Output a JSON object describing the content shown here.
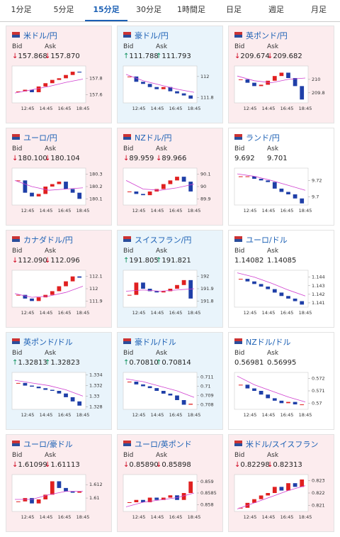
{
  "tabs": [
    "1分足",
    "5分足",
    "15分足",
    "30分足",
    "1時間足",
    "日足",
    "週足",
    "月足"
  ],
  "active_tab": 2,
  "bid_label": "Bid",
  "ask_label": "Ask",
  "cards": [
    {
      "title": "米ドル/円",
      "trend": "down",
      "bid": "↓157.868",
      "ask": "↓157.870",
      "chart": {
        "ylim": [
          157.5,
          157.95
        ],
        "yticks": [
          157.8,
          157.6
        ],
        "xlabels": [
          "12:45",
          "14:45",
          "16:45",
          "18:45"
        ],
        "closes": [
          157.64,
          157.66,
          157.63,
          157.7,
          157.74,
          157.78,
          157.8,
          157.84,
          157.88,
          157.87
        ],
        "ma": [
          157.62,
          157.66,
          157.7,
          157.75,
          157.79
        ]
      }
    },
    {
      "title": "豪ドル/円",
      "trend": "up",
      "bid": "↑111.788",
      "ask": "↑111.793",
      "chart": {
        "ylim": [
          111.75,
          112.1
        ],
        "yticks": [
          112,
          111.8
        ],
        "xlabels": [
          "12:45",
          "14:45",
          "16:45",
          "18:45"
        ],
        "closes": [
          112.0,
          111.95,
          111.93,
          111.9,
          111.88,
          111.9,
          111.86,
          111.84,
          111.82,
          111.79
        ],
        "ma": [
          112.02,
          111.96,
          111.92,
          111.88,
          111.85
        ]
      }
    },
    {
      "title": "英ポンド/円",
      "trend": "down",
      "bid": "↓209.674",
      "ask": "↓209.682",
      "chart": {
        "ylim": [
          209.65,
          210.2
        ],
        "yticks": [
          210,
          209.8
        ],
        "xlabels": [
          "12:45",
          "14:45",
          "16:45",
          "18:45"
        ],
        "closes": [
          210.0,
          209.95,
          209.9,
          209.92,
          209.98,
          210.05,
          210.1,
          210.02,
          209.9,
          209.7
        ],
        "ma": [
          210.05,
          209.98,
          209.95,
          210.0,
          210.02
        ]
      }
    },
    {
      "title": "ユーロ/円",
      "trend": "down",
      "bid": "↓180.100",
      "ask": "↓180.104",
      "chart": {
        "ylim": [
          180.05,
          180.35
        ],
        "yticks": [
          180.3,
          180.2,
          180.1
        ],
        "xlabels": [
          "12:45",
          "14:45",
          "16:45",
          "18:45"
        ],
        "closes": [
          180.25,
          180.15,
          180.12,
          180.14,
          180.2,
          180.22,
          180.24,
          180.18,
          180.15,
          180.1
        ],
        "ma": [
          180.25,
          180.2,
          180.17,
          180.18,
          180.19
        ]
      }
    },
    {
      "title": "NZドル/円",
      "trend": "down",
      "bid": "↓89.959",
      "ask": "↓89.966",
      "chart": {
        "ylim": [
          89.85,
          90.15
        ],
        "yticks": [
          90.1,
          90,
          89.9
        ],
        "xlabels": [
          "12:45",
          "14:45",
          "16:45",
          "18:45"
        ],
        "closes": [
          89.96,
          89.94,
          89.93,
          89.96,
          89.98,
          90.02,
          90.05,
          90.08,
          90.04,
          89.96
        ],
        "ma": [
          90.05,
          89.98,
          89.97,
          89.99,
          90.02
        ]
      }
    },
    {
      "title": "ランド/円",
      "trend": "flat",
      "bid": "9.692",
      "ask": "9.701",
      "chart": {
        "ylim": [
          9.69,
          9.735
        ],
        "yticks": [
          9.72,
          9.7
        ],
        "xlabels": [
          "12:45",
          "14:45",
          "16:45",
          "18:45"
        ],
        "closes": [
          9.725,
          9.725,
          9.722,
          9.72,
          9.718,
          9.71,
          9.706,
          9.703,
          9.698,
          9.692
        ],
        "ma": [
          9.728,
          9.725,
          9.72,
          9.714,
          9.708
        ]
      }
    },
    {
      "title": "カナダドル/円",
      "trend": "down",
      "bid": "↓112.090",
      "ask": "↓112.096",
      "chart": {
        "ylim": [
          111.85,
          112.15
        ],
        "yticks": [
          112.1,
          112,
          111.9
        ],
        "xlabels": [
          "12:45",
          "14:45",
          "16:45",
          "18:45"
        ],
        "closes": [
          111.95,
          111.92,
          111.9,
          111.93,
          111.95,
          111.98,
          112.02,
          112.06,
          112.1,
          112.09
        ],
        "ma": [
          111.96,
          111.93,
          111.94,
          111.97,
          112.02
        ]
      }
    },
    {
      "title": "スイスフラン/円",
      "trend": "up",
      "bid": "↑191.805",
      "ask": "↑191.821",
      "chart": {
        "ylim": [
          191.75,
          192.05
        ],
        "yticks": [
          192,
          191.9,
          191.8
        ],
        "xlabels": [
          "12:45",
          "14:45",
          "16:45",
          "18:45"
        ],
        "closes": [
          191.85,
          191.95,
          191.9,
          191.88,
          191.87,
          191.88,
          191.9,
          191.93,
          191.97,
          191.82
        ],
        "ma": [
          191.88,
          191.89,
          191.88,
          191.89,
          191.9
        ]
      }
    },
    {
      "title": "ユーロ/ドル",
      "trend": "flat",
      "bid": "1.14082",
      "ask": "1.14085",
      "chart": {
        "ylim": [
          1.1405,
          1.1448
        ],
        "yticks": [
          1.144,
          1.143,
          1.142,
          1.141
        ],
        "xlabels": [
          "12:45",
          "14:45",
          "16:45",
          "18:45"
        ],
        "closes": [
          1.1438,
          1.1435,
          1.1432,
          1.1429,
          1.1426,
          1.1422,
          1.1418,
          1.1415,
          1.1412,
          1.1408
        ],
        "ma": [
          1.1445,
          1.144,
          1.1433,
          1.1425,
          1.1418
        ]
      }
    },
    {
      "title": "英ポンド/ドル",
      "trend": "up",
      "bid": "↑1.32813",
      "ask": "↑1.32823",
      "chart": {
        "ylim": [
          1.3275,
          1.3345
        ],
        "yticks": [
          1.334,
          1.332,
          1.33,
          1.328
        ],
        "xlabels": [
          "12:45",
          "14:45",
          "16:45",
          "18:45"
        ],
        "closes": [
          1.3325,
          1.332,
          1.3318,
          1.3315,
          1.3312,
          1.331,
          1.3305,
          1.3298,
          1.329,
          1.3282
        ],
        "ma": [
          1.333,
          1.3325,
          1.332,
          1.3312,
          1.33
        ]
      }
    },
    {
      "title": "豪ドル/ドル",
      "trend": "up",
      "bid": "↑0.70810",
      "ask": "↑0.70814",
      "chart": {
        "ylim": [
          0.7075,
          0.7115
        ],
        "yticks": [
          0.711,
          0.71,
          0.709,
          0.708
        ],
        "xlabels": [
          "12:45",
          "14:45",
          "16:45",
          "18:45"
        ],
        "closes": [
          0.7105,
          0.7102,
          0.71,
          0.7098,
          0.7095,
          0.7092,
          0.709,
          0.7085,
          0.708,
          0.7081
        ],
        "ma": [
          0.7108,
          0.7105,
          0.71,
          0.7095,
          0.7088
        ]
      }
    },
    {
      "title": "NZドル/ドル",
      "trend": "flat",
      "bid": "0.56981",
      "ask": "0.56995",
      "chart": {
        "ylim": [
          0.5695,
          0.5725
        ],
        "yticks": [
          0.572,
          0.571,
          0.57
        ],
        "xlabels": [
          "12:45",
          "14:45",
          "16:45",
          "18:45"
        ],
        "closes": [
          0.5715,
          0.5712,
          0.571,
          0.5707,
          0.5704,
          0.5702,
          0.57,
          0.5701,
          0.5699,
          0.5699
        ],
        "ma": [
          0.5722,
          0.5715,
          0.571,
          0.5705,
          0.5701
        ]
      }
    },
    {
      "title": "ユーロ/豪ドル",
      "trend": "down",
      "bid": "↓1.61099",
      "ask": "↓1.61113",
      "chart": {
        "ylim": [
          1.608,
          1.6135
        ],
        "yticks": [
          1.612,
          1.61
        ],
        "xlabels": [
          "12:45",
          "14:45",
          "16:45",
          "18:45"
        ],
        "closes": [
          1.6095,
          1.61,
          1.6092,
          1.6098,
          1.6105,
          1.6125,
          1.6115,
          1.611,
          1.6108,
          1.611
        ],
        "ma": [
          1.6098,
          1.6098,
          1.6105,
          1.611,
          1.611
        ]
      }
    },
    {
      "title": "ユーロ/英ポンド",
      "trend": "down",
      "bid": "↓0.85890",
      "ask": "↓0.85898",
      "chart": {
        "ylim": [
          0.8577,
          0.8593
        ],
        "yticks": [
          0.859,
          0.8585,
          0.858
        ],
        "xlabels": [
          "12:45",
          "14:45",
          "16:45",
          "18:45"
        ],
        "closes": [
          0.8581,
          0.8582,
          0.8581,
          0.8583,
          0.8582,
          0.8583,
          0.8584,
          0.8582,
          0.8585,
          0.859
        ],
        "ma": [
          0.8579,
          0.8581,
          0.8582,
          0.8583,
          0.8585
        ]
      }
    },
    {
      "title": "米ドル/スイスフラン",
      "trend": "down",
      "bid": "↓0.82298",
      "ask": "↓0.82313",
      "chart": {
        "ylim": [
          0.8205,
          0.8235
        ],
        "yticks": [
          0.823,
          0.822,
          0.821
        ],
        "xlabels": [
          "12:45",
          "14:45",
          "16:45",
          "18:45"
        ],
        "closes": [
          0.8208,
          0.8212,
          0.8215,
          0.8218,
          0.822,
          0.8225,
          0.8222,
          0.8228,
          0.8225,
          0.8231
        ],
        "ma": [
          0.8207,
          0.8212,
          0.8217,
          0.8222,
          0.8226
        ]
      }
    }
  ]
}
